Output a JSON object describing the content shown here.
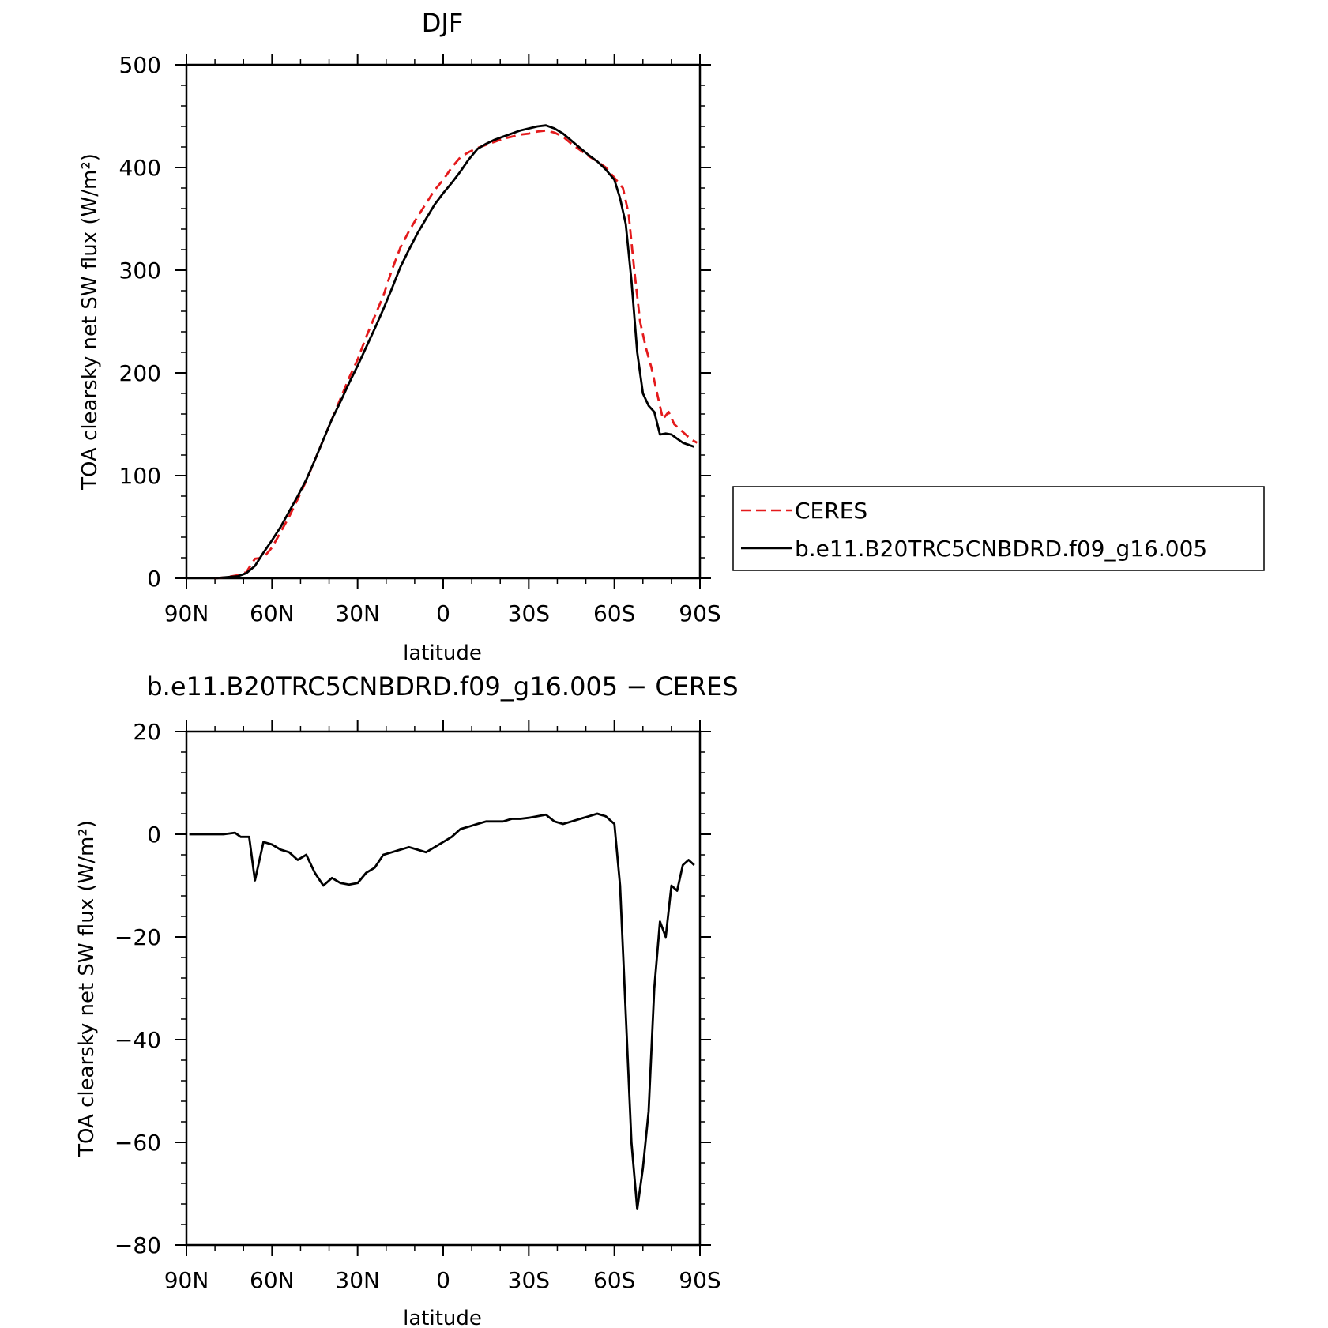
{
  "chart_data": [
    {
      "type": "line",
      "title": "DJF",
      "xlabel": "latitude",
      "ylabel": "TOA clearsky net SW flux (W/m²)",
      "xlim": [
        -90,
        90
      ],
      "ylim": [
        0,
        500
      ],
      "xticks": [
        -90,
        -60,
        -30,
        0,
        30,
        60,
        90
      ],
      "xtick_labels": [
        "90N",
        "60N",
        "30N",
        "0",
        "30S",
        "60S",
        "90S"
      ],
      "yticks": [
        0,
        100,
        200,
        300,
        400,
        500
      ],
      "ytick_labels": [
        "0",
        "100",
        "200",
        "300",
        "400",
        "500"
      ],
      "grid": false,
      "legend": "outside-right",
      "series": [
        {
          "name": "CERES",
          "color": "#e41a1c",
          "dash": "dashed",
          "x": [
            -80,
            -76,
            -72,
            -69,
            -66,
            -63,
            -60,
            -57,
            -54,
            -51,
            -48,
            -45,
            -42,
            -39,
            -36,
            -33,
            -30,
            -27,
            -24,
            -21,
            -18,
            -15,
            -12,
            -9,
            -6,
            -3,
            0,
            3,
            6,
            9,
            12,
            15,
            18,
            21,
            24,
            27,
            30,
            33,
            36,
            39,
            42,
            45,
            48,
            51,
            54,
            57,
            60,
            63,
            65,
            67,
            69,
            71,
            73,
            75,
            77,
            79,
            81,
            83,
            85,
            87,
            89
          ],
          "y": [
            0,
            1,
            3,
            6,
            19,
            20,
            30,
            45,
            60,
            77,
            95,
            115,
            135,
            155,
            175,
            195,
            213,
            235,
            255,
            275,
            300,
            322,
            338,
            352,
            365,
            378,
            388,
            400,
            410,
            415,
            419,
            422,
            425,
            428,
            430,
            432,
            433,
            435,
            436,
            434,
            430,
            423,
            417,
            411,
            406,
            400,
            390,
            380,
            355,
            300,
            250,
            225,
            205,
            180,
            155,
            162,
            150,
            145,
            140,
            135,
            132
          ]
        },
        {
          "name": "b.e11.B20TRC5CNBDRD.f09_g16.005",
          "color": "#000000",
          "dash": "solid",
          "x": [
            -80,
            -76,
            -72,
            -69,
            -66,
            -63,
            -60,
            -57,
            -54,
            -51,
            -48,
            -45,
            -42,
            -39,
            -36,
            -33,
            -30,
            -27,
            -24,
            -21,
            -18,
            -15,
            -12,
            -9,
            -6,
            -3,
            0,
            3,
            6,
            9,
            12,
            15,
            18,
            21,
            24,
            27,
            30,
            33,
            36,
            39,
            42,
            45,
            48,
            51,
            54,
            57,
            60,
            62,
            64,
            66,
            68,
            70,
            72,
            74,
            76,
            78,
            80,
            82,
            84,
            86,
            88
          ],
          "y": [
            0,
            1,
            2,
            5,
            12,
            25,
            37,
            50,
            65,
            80,
            96,
            115,
            135,
            155,
            172,
            190,
            207,
            225,
            243,
            262,
            282,
            303,
            320,
            336,
            350,
            364,
            375,
            385,
            396,
            408,
            418,
            423,
            427,
            430,
            433,
            436,
            438,
            440,
            441,
            438,
            433,
            426,
            419,
            412,
            406,
            398,
            388,
            370,
            345,
            290,
            220,
            180,
            168,
            162,
            140,
            141,
            140,
            136,
            132,
            130,
            128
          ]
        }
      ]
    },
    {
      "type": "line",
      "title": "b.e11.B20TRC5CNBDRD.f09_g16.005 − CERES",
      "xlabel": "latitude",
      "ylabel": "TOA clearsky net SW flux (W/m²)",
      "xlim": [
        -90,
        90
      ],
      "ylim": [
        -80,
        20
      ],
      "xticks": [
        -90,
        -60,
        -30,
        0,
        30,
        60,
        90
      ],
      "xtick_labels": [
        "90N",
        "60N",
        "30N",
        "0",
        "30S",
        "60S",
        "90S"
      ],
      "yticks": [
        -80,
        -60,
        -40,
        -20,
        0,
        20
      ],
      "ytick_labels": [
        "−80",
        "−60",
        "−40",
        "−20",
        "0",
        "20"
      ],
      "grid": false,
      "series": [
        {
          "color": "#000000",
          "dash": "solid",
          "x": [
            -89,
            -85,
            -81,
            -77,
            -73,
            -71,
            -68,
            -66,
            -63,
            -60,
            -57,
            -54,
            -51,
            -48,
            -45,
            -42,
            -39,
            -36,
            -33,
            -30,
            -27,
            -24,
            -21,
            -18,
            -15,
            -12,
            -9,
            -6,
            -3,
            0,
            3,
            6,
            9,
            12,
            15,
            18,
            21,
            24,
            27,
            30,
            33,
            36,
            39,
            42,
            45,
            48,
            51,
            54,
            57,
            60,
            62,
            64,
            66,
            68,
            70,
            72,
            74,
            76,
            78,
            80,
            82,
            84,
            86,
            88
          ],
          "y": [
            0,
            0,
            0,
            0,
            0.3,
            -0.5,
            -0.5,
            -9,
            -1.5,
            -2,
            -3,
            -3.5,
            -5,
            -4,
            -7.5,
            -10,
            -8.5,
            -9.5,
            -9.8,
            -9.5,
            -7.5,
            -6.5,
            -4,
            -3.5,
            -3,
            -2.5,
            -3,
            -3.5,
            -2.5,
            -1.5,
            -0.5,
            1,
            1.5,
            2,
            2.5,
            2.5,
            2.5,
            3,
            3,
            3.2,
            3.5,
            3.8,
            2.5,
            2,
            2.5,
            3,
            3.5,
            4,
            3.5,
            2,
            -10,
            -35,
            -60,
            -73,
            -65,
            -54,
            -30,
            -17,
            -20,
            -10,
            -11,
            -6,
            -5,
            -6
          ]
        }
      ]
    }
  ]
}
